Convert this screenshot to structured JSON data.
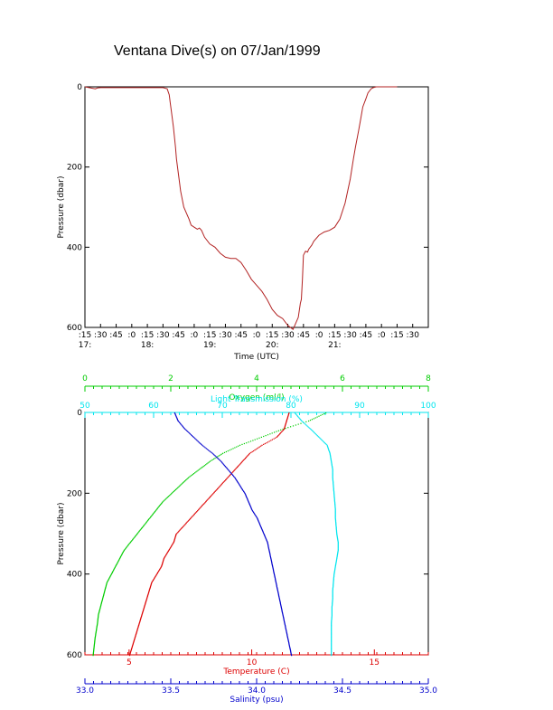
{
  "title": "Ventana Dive(s) on 07/Jan/1999",
  "colors": {
    "axis": "#000000",
    "time_series": "#b22222",
    "oxygen": "#00cc00",
    "light_transmission": "#00e5ee",
    "temperature": "#dd0000",
    "salinity": "#0000cc"
  },
  "chart_data": [
    {
      "type": "line",
      "xlabel": "Time (UTC)",
      "ylabel": "Pressure (dbar)",
      "ylim": [
        600,
        0
      ],
      "y_ticks": [
        "0",
        "200",
        "400",
        "600"
      ],
      "x_tick_minute_labels": [
        ":15",
        ":30",
        ":45",
        ":0",
        ":15",
        ":30",
        ":45",
        ":0",
        ":15",
        ":30",
        ":45",
        ":0",
        ":15",
        ":30",
        ":45",
        ":0",
        ":15",
        ":30",
        ":45",
        ":0",
        ":15",
        ":30"
      ],
      "x_tick_hour_labels": [
        "17:",
        "18:",
        "19:",
        "20:",
        "21:"
      ],
      "xlim_minutes_after_17_15": [
        0,
        330
      ],
      "series": [
        {
          "x_minutes_after_17_15": [
            0,
            10,
            12,
            15,
            20,
            30,
            40,
            50,
            60,
            70,
            75,
            79,
            81,
            82,
            83,
            85,
            87,
            88,
            90,
            92,
            95,
            100,
            102,
            105,
            108,
            110,
            112,
            115,
            120,
            125,
            130,
            135,
            140,
            145,
            150,
            155,
            160,
            165,
            170,
            175,
            180,
            185,
            190,
            195,
            200,
            205,
            207,
            208,
            209,
            210,
            212,
            214,
            215,
            218,
            220,
            225,
            230,
            235,
            240,
            245,
            250,
            255,
            258,
            260,
            263,
            265,
            267,
            270,
            272,
            275,
            277,
            280,
            282,
            285,
            287,
            290,
            292,
            295,
            298,
            300
          ],
          "pressure": [
            0,
            5,
            3,
            2,
            2,
            2,
            2,
            2,
            2,
            2,
            2,
            5,
            20,
            40,
            60,
            100,
            150,
            180,
            220,
            260,
            300,
            330,
            345,
            350,
            355,
            352,
            358,
            375,
            392,
            400,
            415,
            425,
            428,
            428,
            438,
            458,
            480,
            495,
            510,
            530,
            555,
            570,
            578,
            595,
            605,
            575,
            540,
            530,
            480,
            420,
            410,
            412,
            405,
            395,
            385,
            370,
            362,
            358,
            350,
            330,
            290,
            230,
            180,
            150,
            110,
            80,
            50,
            30,
            15,
            5,
            2,
            0,
            0,
            0,
            0,
            0,
            0,
            0,
            0,
            0
          ]
        }
      ]
    },
    {
      "type": "scatter",
      "ylabel": "Pressure (dbar)",
      "ylim": [
        600,
        0
      ],
      "y_ticks": [
        "0",
        "200",
        "400",
        "600"
      ],
      "axes": [
        {
          "label": "Oxygen (ml/l)",
          "position": "top-outer",
          "xlim": [
            0,
            8
          ],
          "ticks": [
            "0",
            "2",
            "4",
            "6",
            "8"
          ]
        },
        {
          "label": "Light Transmission (%)",
          "position": "top-inner",
          "xlim": [
            50,
            100
          ],
          "ticks": [
            "50",
            "60",
            "70",
            "80",
            "90",
            "100"
          ]
        },
        {
          "label": "Temperature (C)",
          "position": "bottom-inner",
          "xlim": [
            3.2,
            17.2
          ],
          "ticks": [
            "5",
            "10",
            "15"
          ]
        },
        {
          "label": "Salinity (psu)",
          "position": "bottom-outer",
          "xlim": [
            33.0,
            35.0
          ],
          "ticks": [
            "33.0",
            "33.5",
            "34.0",
            "34.5",
            "35.0"
          ]
        }
      ],
      "series": [
        {
          "name": "Oxygen (ml/l)",
          "pressure": [
            0,
            20,
            40,
            60,
            80,
            100,
            120,
            140,
            160,
            180,
            200,
            220,
            240,
            260,
            280,
            300,
            320,
            340,
            360,
            380,
            400,
            420,
            440,
            460,
            480,
            500,
            520,
            540,
            560,
            580,
            600
          ],
          "values": [
            5.6,
            5.2,
            4.6,
            4.1,
            3.6,
            3.2,
            2.9,
            2.65,
            2.4,
            2.2,
            2.0,
            1.8,
            1.65,
            1.5,
            1.35,
            1.2,
            1.05,
            0.9,
            0.8,
            0.7,
            0.6,
            0.5,
            0.45,
            0.4,
            0.35,
            0.3,
            0.28,
            0.25,
            0.22,
            0.2,
            0.18
          ]
        },
        {
          "name": "Light Transmission (%)",
          "pressure": [
            0,
            20,
            40,
            60,
            80,
            100,
            120,
            140,
            160,
            180,
            200,
            220,
            240,
            260,
            280,
            300,
            320,
            340,
            360,
            380,
            400,
            420,
            440,
            460,
            480,
            500,
            520,
            540,
            560,
            580,
            600
          ],
          "values": [
            80.5,
            81.5,
            82.8,
            84.0,
            85.2,
            85.6,
            85.8,
            86.0,
            86.0,
            86.1,
            86.2,
            86.3,
            86.4,
            86.4,
            86.5,
            86.6,
            86.8,
            86.8,
            86.6,
            86.4,
            86.2,
            86.1,
            86.0,
            86.0,
            85.9,
            85.9,
            85.8,
            85.8,
            85.8,
            85.8,
            85.8
          ]
        },
        {
          "name": "Temperature (C)",
          "pressure": [
            0,
            20,
            40,
            60,
            80,
            100,
            120,
            140,
            160,
            180,
            200,
            220,
            240,
            260,
            280,
            300,
            320,
            340,
            360,
            380,
            400,
            420,
            440,
            460,
            480,
            500,
            520,
            540,
            560,
            580,
            600
          ],
          "values": [
            11.5,
            11.4,
            11.3,
            11.0,
            10.4,
            9.9,
            9.6,
            9.3,
            9.0,
            8.7,
            8.4,
            8.1,
            7.8,
            7.5,
            7.2,
            6.9,
            6.8,
            6.6,
            6.4,
            6.3,
            6.1,
            5.9,
            5.8,
            5.7,
            5.6,
            5.5,
            5.4,
            5.3,
            5.2,
            5.1,
            5.0
          ]
        },
        {
          "name": "Salinity (psu)",
          "pressure": [
            0,
            20,
            40,
            60,
            80,
            100,
            120,
            140,
            160,
            180,
            200,
            220,
            240,
            260,
            280,
            300,
            320,
            340,
            360,
            380,
            400,
            420,
            440,
            460,
            480,
            500,
            520,
            540,
            560,
            580,
            600
          ],
          "values": [
            33.52,
            33.54,
            33.58,
            33.63,
            33.68,
            33.74,
            33.79,
            33.83,
            33.87,
            33.9,
            33.93,
            33.95,
            33.97,
            34.0,
            34.02,
            34.04,
            34.06,
            34.07,
            34.08,
            34.09,
            34.1,
            34.11,
            34.12,
            34.13,
            34.14,
            34.15,
            34.16,
            34.17,
            34.18,
            34.19,
            34.2
          ]
        }
      ]
    }
  ]
}
